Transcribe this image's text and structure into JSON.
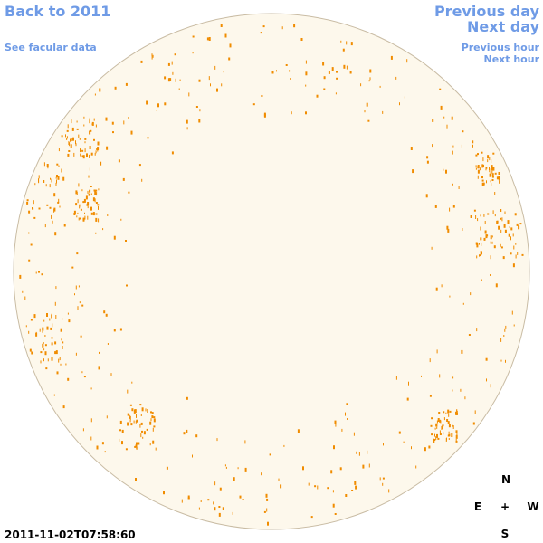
{
  "header": {
    "back_link": "Back to 2011",
    "facular_link": "See facular data",
    "previous_day": "Previous day",
    "next_day": "Next day",
    "previous_hour": "Previous hour",
    "next_hour": "Next hour"
  },
  "timestamp": "2011-11-02T07:58:60",
  "compass": {
    "north": "N",
    "east": "E",
    "center": "+",
    "west": "W",
    "south": "S"
  }
}
